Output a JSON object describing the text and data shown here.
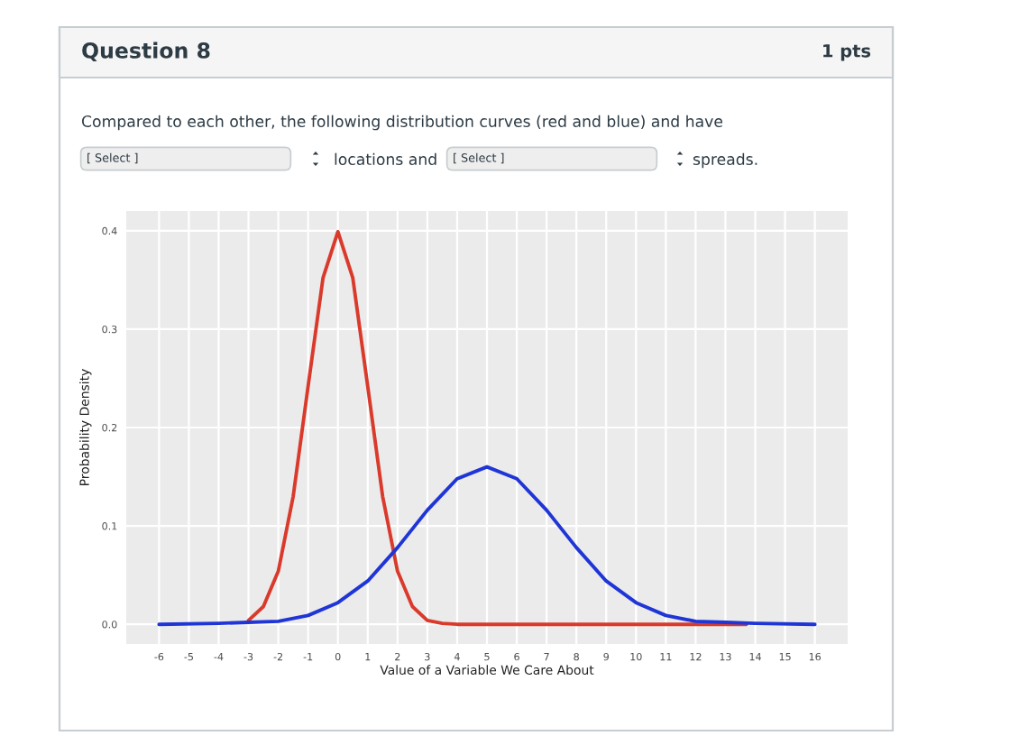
{
  "chart_data": {
    "type": "line",
    "title": "Question 8",
    "annotations": [
      "1 pts",
      "Compared to each other, the following distribution curves (red and blue) and have",
      "[ Select ]",
      "locations and",
      "[ Select ]",
      "spreads."
    ],
    "xlabel": "Value of a Variable We Care About",
    "ylabel": "Probability Density",
    "series": [
      {
        "color": "#d93a2b",
        "x": [
          -3,
          -2.5,
          -2,
          -1.5,
          -1,
          -0.5,
          0,
          0.5,
          1,
          1.5,
          2,
          2.5,
          3,
          3.5,
          4,
          8,
          13.7
        ],
        "values": [
          0.004,
          0.018,
          0.054,
          0.13,
          0.242,
          0.352,
          0.399,
          0.352,
          0.242,
          0.13,
          0.054,
          0.018,
          0.004,
          0.001,
          0,
          0,
          0
        ]
      },
      {
        "color": "#1f35d6",
        "x": [
          -6,
          -4,
          -3,
          -2,
          -1,
          0,
          1,
          2,
          3,
          4,
          5,
          6,
          7,
          8,
          9,
          10,
          11,
          12,
          13,
          14,
          16
        ],
        "values": [
          0,
          0.001,
          0.002,
          0.003,
          0.009,
          0.022,
          0.044,
          0.078,
          0.116,
          0.148,
          0.16,
          0.148,
          0.116,
          0.078,
          0.044,
          0.022,
          0.009,
          0.003,
          0.002,
          0.001,
          0
        ]
      }
    ],
    "xlim": [
      -7.1,
      17.1
    ],
    "ylim": [
      -0.02,
      0.42
    ],
    "xticks": [
      -6,
      -5,
      -4,
      -3,
      -2,
      -1,
      0,
      1,
      2,
      3,
      4,
      5,
      6,
      7,
      8,
      9,
      10,
      11,
      12,
      13,
      14,
      15,
      16
    ],
    "yticks": [
      {
        "value": 0,
        "label": "0.0"
      },
      0.1,
      0.2,
      0.3,
      0.4
    ],
    "grid": true,
    "line_style": "solid",
    "marker": "none"
  }
}
